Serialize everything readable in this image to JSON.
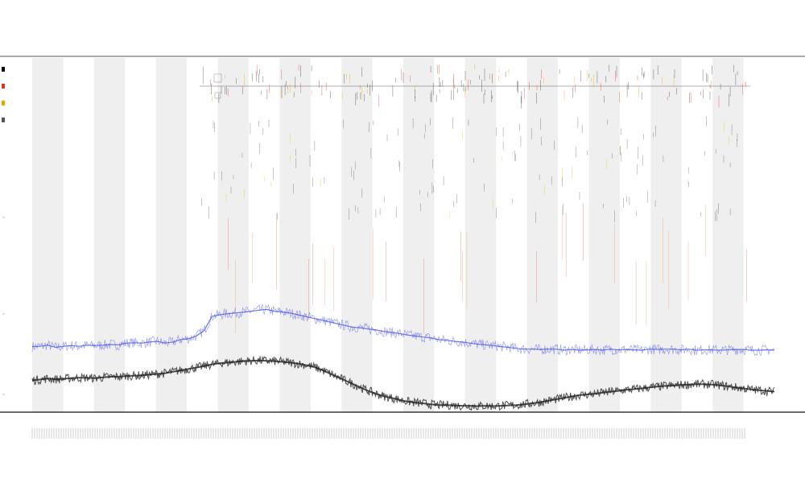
{
  "figure": {
    "title": "",
    "subtitle_1": "",
    "subtitle_2": ""
  },
  "chart_data": {
    "type": "line",
    "title": "",
    "xlabel": "",
    "ylabel": "",
    "grid": false,
    "alternating_vertical_bands": true,
    "band_count": 12,
    "legend_placement": "top-left",
    "legend": [
      {
        "name": "",
        "color": "#000000"
      },
      {
        "name": "",
        "color": "#e03020"
      },
      {
        "name": "",
        "color": "#f0a000"
      },
      {
        "name": "",
        "color": "#555555"
      }
    ],
    "series": [
      {
        "name": "",
        "color": "#4a55e8",
        "values": [
          0.185,
          0.186,
          0.189,
          0.183,
          0.186,
          0.188,
          0.186,
          0.189,
          0.188,
          0.189,
          0.191,
          0.19,
          0.195,
          0.196,
          0.195,
          0.198,
          0.2,
          0.195,
          0.198,
          0.205,
          0.207,
          0.215,
          0.23,
          0.27,
          0.275,
          0.278,
          0.28,
          0.282,
          0.285,
          0.288,
          0.29,
          0.285,
          0.283,
          0.28,
          0.275,
          0.27,
          0.265,
          0.26,
          0.255,
          0.25,
          0.245,
          0.24,
          0.238,
          0.235,
          0.232,
          0.228,
          0.225,
          0.222,
          0.218,
          0.215,
          0.212,
          0.21,
          0.205,
          0.203,
          0.2,
          0.198,
          0.195,
          0.192,
          0.19,
          0.188,
          0.185,
          0.183,
          0.18,
          0.178,
          0.178,
          0.177,
          0.178,
          0.178,
          0.175,
          0.177,
          0.175,
          0.176,
          0.177,
          0.175,
          0.178,
          0.176,
          0.177,
          0.176,
          0.175,
          0.178,
          0.177,
          0.178,
          0.178,
          0.176,
          0.178,
          0.175,
          0.176,
          0.176,
          0.175,
          0.176,
          0.177,
          0.177,
          0.175,
          0.175,
          0.176,
          0.175
        ]
      },
      {
        "name": "",
        "color": "#222222",
        "values": [
          0.09,
          0.092,
          0.095,
          0.093,
          0.094,
          0.096,
          0.097,
          0.097,
          0.096,
          0.098,
          0.1,
          0.1,
          0.102,
          0.103,
          0.104,
          0.106,
          0.108,
          0.11,
          0.114,
          0.118,
          0.122,
          0.126,
          0.13,
          0.135,
          0.138,
          0.14,
          0.142,
          0.144,
          0.145,
          0.146,
          0.145,
          0.144,
          0.142,
          0.14,
          0.137,
          0.133,
          0.128,
          0.12,
          0.11,
          0.1,
          0.09,
          0.08,
          0.07,
          0.06,
          0.052,
          0.045,
          0.04,
          0.035,
          0.03,
          0.027,
          0.025,
          0.022,
          0.02,
          0.02,
          0.019,
          0.018,
          0.018,
          0.017,
          0.018,
          0.017,
          0.018,
          0.019,
          0.02,
          0.022,
          0.025,
          0.028,
          0.032,
          0.036,
          0.04,
          0.044,
          0.048,
          0.05,
          0.052,
          0.055,
          0.058,
          0.06,
          0.063,
          0.065,
          0.067,
          0.07,
          0.072,
          0.074,
          0.075,
          0.077,
          0.078,
          0.079,
          0.079,
          0.078,
          0.076,
          0.073,
          0.07,
          0.067,
          0.064,
          0.062,
          0.06,
          0.058
        ]
      }
    ]
  }
}
